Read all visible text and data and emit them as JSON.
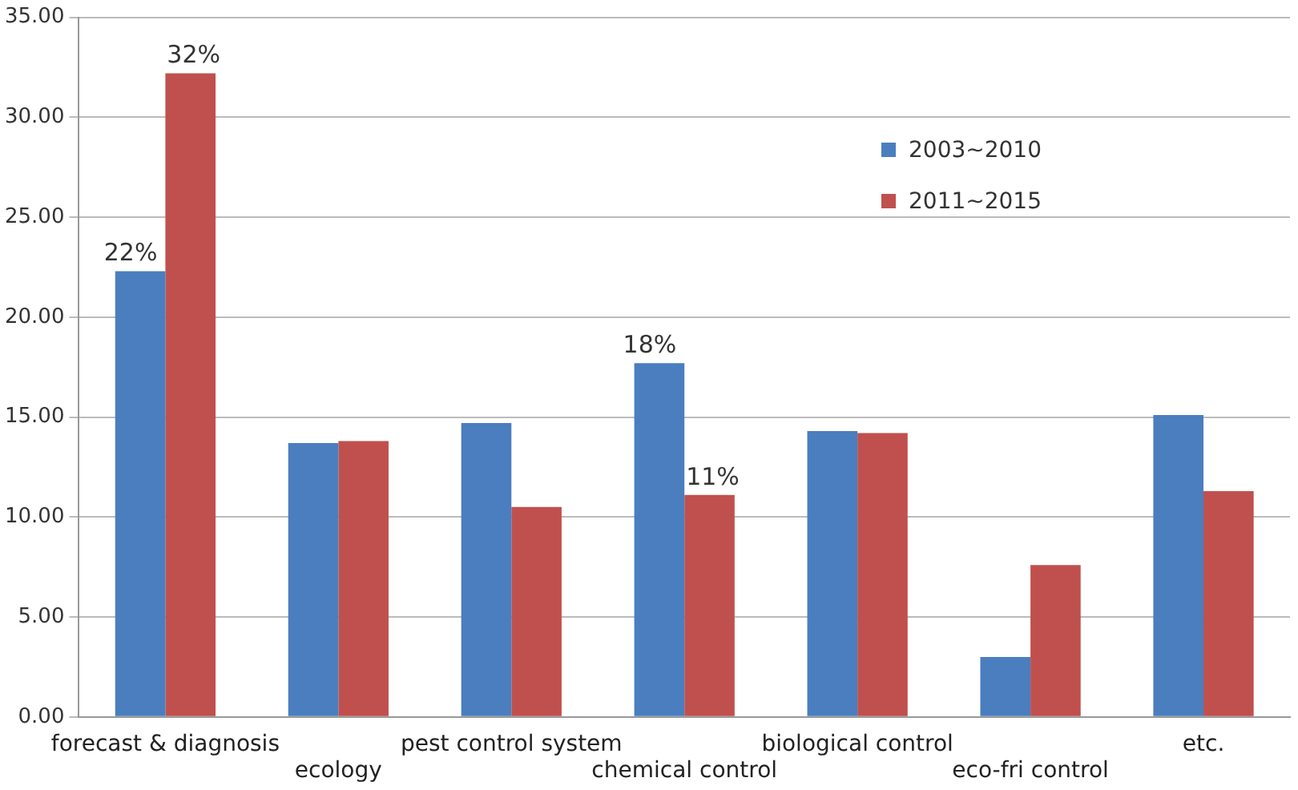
{
  "chart_data": {
    "type": "bar",
    "categories": [
      "forecast & diagnosis",
      "ecology",
      "pest control system",
      "chemical control",
      "biological control",
      "eco-fri control",
      "etc."
    ],
    "series": [
      {
        "name": "2003~2010",
        "color": "#4a7ebf",
        "values": [
          22.3,
          13.7,
          14.7,
          17.7,
          14.3,
          3.0,
          15.1
        ],
        "value_labels": [
          "22%",
          null,
          null,
          "18%",
          null,
          null,
          null
        ]
      },
      {
        "name": "2011~2015",
        "color": "#c0504d",
        "values": [
          32.2,
          13.8,
          10.5,
          11.1,
          14.2,
          7.6,
          11.3
        ],
        "value_labels": [
          "32%",
          null,
          null,
          "11%",
          null,
          null,
          null
        ]
      }
    ],
    "ylim": [
      0,
      35
    ],
    "yticks": [
      {
        "value": 0,
        "label": "0.00"
      },
      {
        "value": 5,
        "label": "5.00"
      },
      {
        "value": 10,
        "label": "10.00"
      },
      {
        "value": 15,
        "label": "15.00"
      },
      {
        "value": 20,
        "label": "20.00"
      },
      {
        "value": 25,
        "label": "25.00"
      },
      {
        "value": 30,
        "label": "30.00"
      },
      {
        "value": 35,
        "label": "35.00"
      }
    ],
    "grid": "y",
    "legend": "top right"
  }
}
